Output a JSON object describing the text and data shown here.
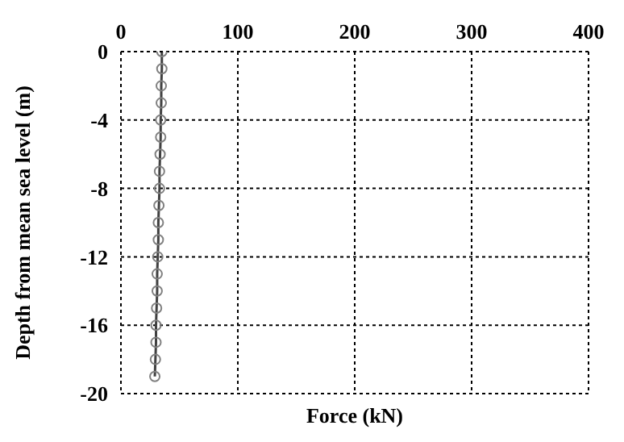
{
  "chart_data": {
    "type": "line",
    "xlabel": "Force (kN)",
    "ylabel": "Depth from mean sea level (m)",
    "xlim": [
      0,
      400
    ],
    "xticks": [
      0,
      100,
      200,
      300,
      400
    ],
    "ylim": [
      -20,
      0
    ],
    "yticks": [
      -20,
      -16,
      -12,
      -8,
      -4,
      0
    ],
    "grid": true,
    "marker": "circle",
    "line_style": "solid",
    "series": [
      {
        "color": "#404040",
        "x": [
          35,
          35,
          34.5,
          34.5,
          34,
          34,
          33.5,
          33,
          33,
          32.5,
          32,
          32,
          31.5,
          31,
          31,
          30.5,
          30,
          30,
          29.5,
          29
        ],
        "values": [
          0,
          -1,
          -2,
          -3,
          -4,
          -5,
          -6,
          -7,
          -8,
          -9,
          -10,
          -11,
          -12,
          -13,
          -14,
          -15,
          -16,
          -17,
          -18,
          -19
        ]
      }
    ]
  }
}
